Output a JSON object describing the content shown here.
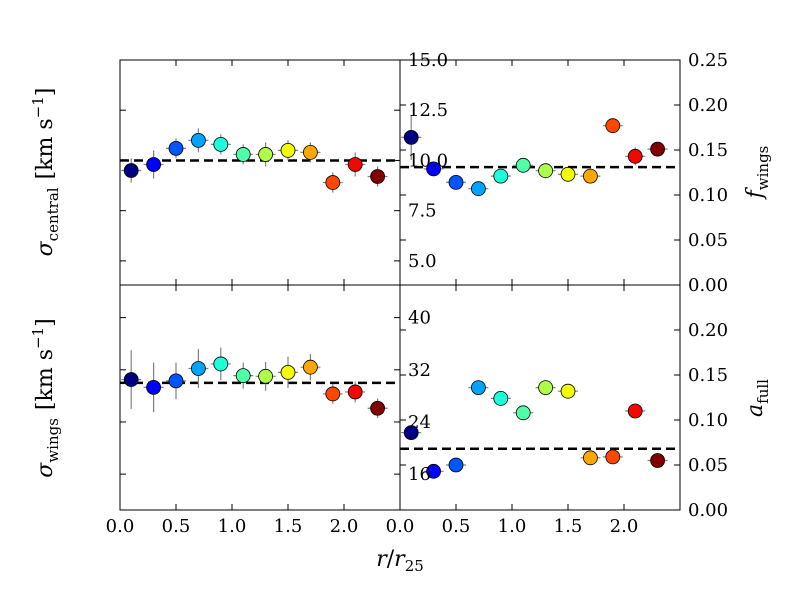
{
  "chart_data": [
    {
      "type": "scatter",
      "panel": "top-left",
      "ylabel": {
        "symbol": "σ",
        "subscript": "central",
        "units": "[km s",
        "units_exp": "−1",
        "units_close": "]"
      },
      "xlim": [
        0.0,
        2.5
      ],
      "ylim": [
        3.8,
        15.0
      ],
      "yticks": [
        5.0,
        7.5,
        10.0,
        12.5,
        15.0
      ],
      "ytick_labels": [
        "5.0",
        "7.5",
        "10.0",
        "12.5",
        "15.0"
      ],
      "reference_line": 10.0,
      "points": [
        {
          "x": 0.1,
          "y": 9.5,
          "yerr": 0.6,
          "color": "#000080"
        },
        {
          "x": 0.3,
          "y": 9.8,
          "yerr": 0.7,
          "color": "#0000ff"
        },
        {
          "x": 0.5,
          "y": 10.6,
          "yerr": 0.5,
          "color": "#0055ff"
        },
        {
          "x": 0.7,
          "y": 11.0,
          "yerr": 0.6,
          "color": "#00a4ff"
        },
        {
          "x": 0.9,
          "y": 10.8,
          "yerr": 0.5,
          "color": "#1cffdb"
        },
        {
          "x": 1.1,
          "y": 10.3,
          "yerr": 0.5,
          "color": "#50ffa7"
        },
        {
          "x": 1.3,
          "y": 10.3,
          "yerr": 0.6,
          "color": "#adff49"
        },
        {
          "x": 1.5,
          "y": 10.5,
          "yerr": 0.5,
          "color": "#f1fc06"
        },
        {
          "x": 1.7,
          "y": 10.4,
          "yerr": 0.5,
          "color": "#ffa700"
        },
        {
          "x": 1.9,
          "y": 8.9,
          "yerr": 0.5,
          "color": "#ff4700"
        },
        {
          "x": 2.1,
          "y": 9.8,
          "yerr": 0.6,
          "color": "#f10800"
        },
        {
          "x": 2.3,
          "y": 9.2,
          "yerr": 0.5,
          "color": "#800000"
        }
      ]
    },
    {
      "type": "scatter",
      "panel": "top-right",
      "ylabel": {
        "symbol": "f",
        "subscript": "wings"
      },
      "xlim": [
        0.0,
        2.5
      ],
      "ylim": [
        0.0,
        0.25
      ],
      "yticks": [
        0.0,
        0.05,
        0.1,
        0.15,
        0.2,
        0.25
      ],
      "ytick_labels": [
        "0.00",
        "0.05",
        "0.10",
        "0.15",
        "0.20",
        "0.25"
      ],
      "reference_line": 0.131,
      "points": [
        {
          "x": 0.1,
          "y": 0.164,
          "yerr": 0.025,
          "color": "#000080"
        },
        {
          "x": 0.3,
          "y": 0.129,
          "yerr": 0.008,
          "color": "#0000ff"
        },
        {
          "x": 0.5,
          "y": 0.114,
          "yerr": 0.006,
          "color": "#0055ff"
        },
        {
          "x": 0.7,
          "y": 0.107,
          "yerr": 0.008,
          "color": "#00a4ff"
        },
        {
          "x": 0.9,
          "y": 0.121,
          "yerr": 0.005,
          "color": "#1cffdb"
        },
        {
          "x": 1.1,
          "y": 0.133,
          "yerr": 0.006,
          "color": "#50ffa7"
        },
        {
          "x": 1.3,
          "y": 0.127,
          "yerr": 0.005,
          "color": "#adff49"
        },
        {
          "x": 1.5,
          "y": 0.123,
          "yerr": 0.005,
          "color": "#f1fc06"
        },
        {
          "x": 1.7,
          "y": 0.121,
          "yerr": 0.008,
          "color": "#ffa700"
        },
        {
          "x": 1.9,
          "y": 0.177,
          "yerr": 0.008,
          "color": "#ff4700"
        },
        {
          "x": 2.1,
          "y": 0.143,
          "yerr": 0.01,
          "color": "#f10800"
        },
        {
          "x": 2.3,
          "y": 0.151,
          "yerr": 0.008,
          "color": "#800000"
        }
      ]
    },
    {
      "type": "scatter",
      "panel": "bottom-left",
      "ylabel": {
        "symbol": "σ",
        "subscript": "wings",
        "units": "[km s",
        "units_exp": "−1",
        "units_close": "]"
      },
      "xlabel": {
        "numer": "r",
        "slash": "/",
        "denom": "r",
        "denom_sub": "25"
      },
      "xlim": [
        0.0,
        2.5
      ],
      "ylim": [
        10.5,
        45.0
      ],
      "yticks": [
        16,
        24,
        32,
        40
      ],
      "ytick_labels": [
        "16",
        "24",
        "32",
        "40"
      ],
      "xticks": [
        0.0,
        0.5,
        1.0,
        1.5,
        2.0
      ],
      "xtick_labels": [
        "0.0",
        "0.5",
        "1.0",
        "1.5",
        "2.0"
      ],
      "reference_line": 30.0,
      "points": [
        {
          "x": 0.1,
          "y": 30.5,
          "yerr": 4.5,
          "color": "#000080"
        },
        {
          "x": 0.3,
          "y": 29.3,
          "yerr": 3.8,
          "color": "#0000ff"
        },
        {
          "x": 0.5,
          "y": 30.3,
          "yerr": 2.8,
          "color": "#0055ff"
        },
        {
          "x": 0.7,
          "y": 32.2,
          "yerr": 3.0,
          "color": "#00a4ff"
        },
        {
          "x": 0.9,
          "y": 32.9,
          "yerr": 2.5,
          "color": "#1cffdb"
        },
        {
          "x": 1.1,
          "y": 31.1,
          "yerr": 2.0,
          "color": "#50ffa7"
        },
        {
          "x": 1.3,
          "y": 31.0,
          "yerr": 2.2,
          "color": "#adff49"
        },
        {
          "x": 1.5,
          "y": 31.6,
          "yerr": 2.4,
          "color": "#f1fc06"
        },
        {
          "x": 1.7,
          "y": 32.4,
          "yerr": 2.0,
          "color": "#ffa700"
        },
        {
          "x": 1.9,
          "y": 28.3,
          "yerr": 1.5,
          "color": "#ff4700"
        },
        {
          "x": 2.1,
          "y": 28.6,
          "yerr": 1.6,
          "color": "#f10800"
        },
        {
          "x": 2.3,
          "y": 26.1,
          "yerr": 1.5,
          "color": "#800000"
        }
      ]
    },
    {
      "type": "scatter",
      "panel": "bottom-right",
      "ylabel": {
        "symbol": "a",
        "subscript": "full"
      },
      "xlim": [
        0.0,
        2.5
      ],
      "ylim": [
        0.0,
        0.25
      ],
      "yticks": [
        0.0,
        0.05,
        0.1,
        0.15,
        0.2
      ],
      "ytick_labels": [
        "0.00",
        "0.05",
        "0.10",
        "0.15",
        "0.20"
      ],
      "xticks": [
        0.0,
        0.5,
        1.0,
        1.5,
        2.0
      ],
      "xtick_labels": [
        "0.0",
        "0.5",
        "1.0",
        "1.5",
        "2.0"
      ],
      "reference_line": 0.068,
      "points": [
        {
          "x": 0.1,
          "y": 0.086,
          "yerr": 0.002,
          "color": "#000080"
        },
        {
          "x": 0.3,
          "y": 0.043,
          "yerr": 0.002,
          "color": "#0000ff"
        },
        {
          "x": 0.5,
          "y": 0.05,
          "yerr": 0.002,
          "color": "#0055ff"
        },
        {
          "x": 0.7,
          "y": 0.136,
          "yerr": 0.002,
          "color": "#00a4ff"
        },
        {
          "x": 0.9,
          "y": 0.124,
          "yerr": 0.002,
          "color": "#1cffdb"
        },
        {
          "x": 1.1,
          "y": 0.108,
          "yerr": 0.002,
          "color": "#50ffa7"
        },
        {
          "x": 1.3,
          "y": 0.136,
          "yerr": 0.002,
          "color": "#adff49"
        },
        {
          "x": 1.5,
          "y": 0.132,
          "yerr": 0.002,
          "color": "#f1fc06"
        },
        {
          "x": 1.7,
          "y": 0.058,
          "yerr": 0.002,
          "color": "#ffa700"
        },
        {
          "x": 1.9,
          "y": 0.059,
          "yerr": 0.002,
          "color": "#ff4700"
        },
        {
          "x": 2.1,
          "y": 0.11,
          "yerr": 0.002,
          "color": "#f10800"
        },
        {
          "x": 2.3,
          "y": 0.055,
          "yerr": 0.002,
          "color": "#800000"
        }
      ]
    }
  ]
}
